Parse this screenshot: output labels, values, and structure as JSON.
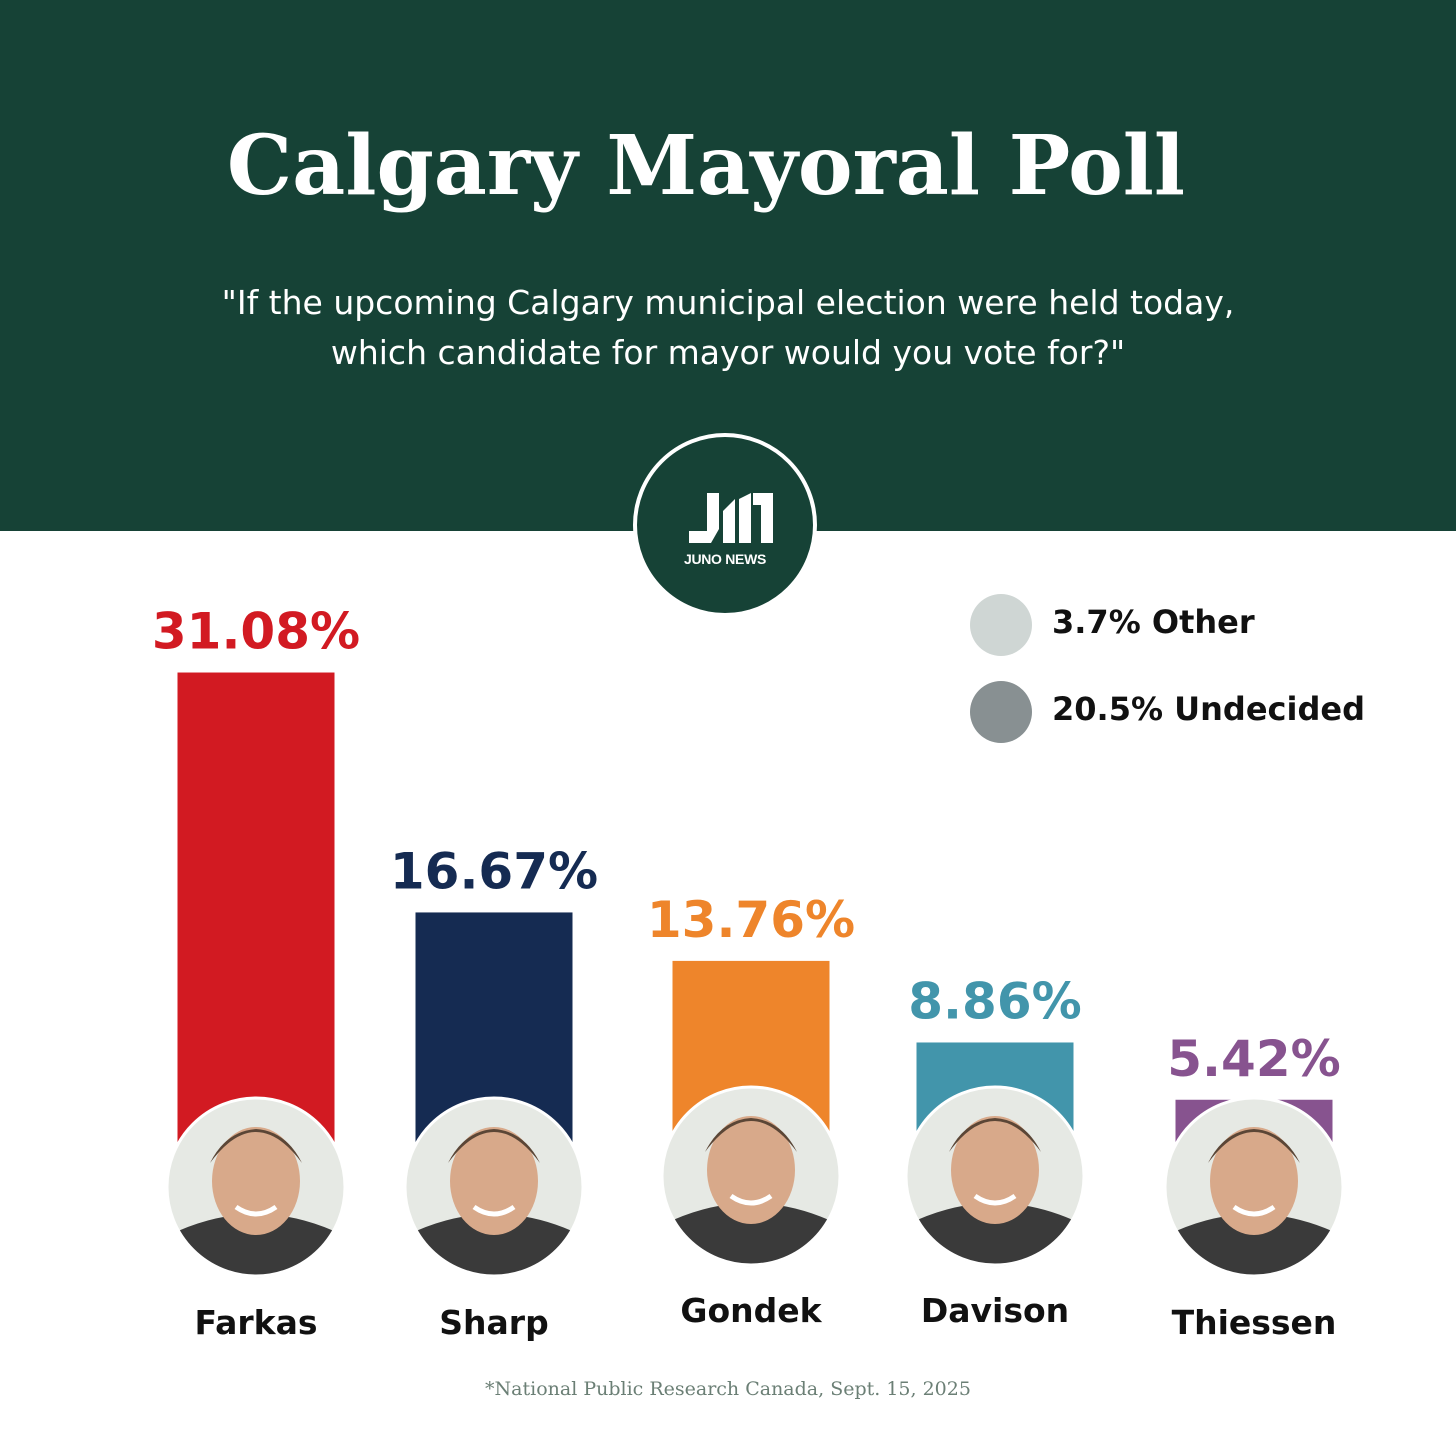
{
  "title": "Calgary Mayoral Poll",
  "subtitle_line1": "\"If the upcoming Calgary municipal election were held today,",
  "subtitle_line2": "which candidate for mayor would you vote for?\"",
  "logo": {
    "text": "JUNO NEWS",
    "background": "#164236"
  },
  "legend": [
    {
      "label": "3.7% Other",
      "value": 3.7,
      "color": "#cfd6d4"
    },
    {
      "label": "20.5% Undecided",
      "value": 20.5,
      "color": "#889092"
    }
  ],
  "source": "*National Public Research Canada, Sept. 15, 2025",
  "colors": {
    "header": "#164236"
  },
  "chart_data": {
    "type": "bar",
    "title": "Calgary Mayoral Poll",
    "categories": [
      "Farkas",
      "Sharp",
      "Gondek",
      "Davison",
      "Thiessen"
    ],
    "values": [
      31.08,
      16.67,
      13.76,
      8.86,
      5.42
    ],
    "value_labels": [
      "31.08%",
      "16.67%",
      "13.76%",
      "8.86%",
      "5.42%"
    ],
    "colors": [
      "#d21a22",
      "#152b52",
      "#ee852b",
      "#4295ab",
      "#87538f"
    ],
    "photo_icons": [
      "portrait-farkas-icon",
      "portrait-sharp-icon",
      "portrait-gondek-icon",
      "portrait-davison-icon",
      "portrait-thiessen-icon"
    ],
    "xlabel": "",
    "ylabel": "",
    "grid": false
  }
}
